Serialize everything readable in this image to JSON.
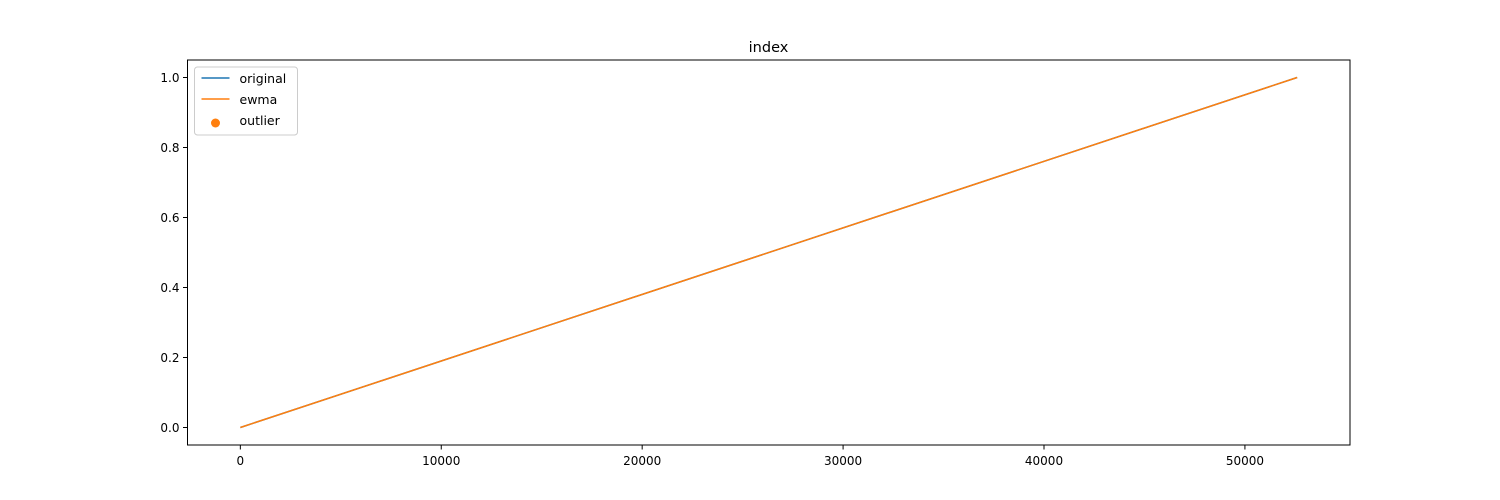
{
  "chart_data": {
    "type": "line",
    "title": "index",
    "xlabel": "",
    "ylabel": "",
    "xlim": [
      -2630,
      55230
    ],
    "ylim": [
      -0.05,
      1.05
    ],
    "x_ticks": [
      0,
      10000,
      20000,
      30000,
      40000,
      50000
    ],
    "x_tick_labels": [
      "0",
      "10000",
      "20000",
      "30000",
      "40000",
      "50000"
    ],
    "y_ticks": [
      0.0,
      0.2,
      0.4,
      0.6,
      0.8,
      1.0
    ],
    "y_tick_labels": [
      "0.0",
      "0.2",
      "0.4",
      "0.6",
      "0.8",
      "1.0"
    ],
    "grid": false,
    "legend_position": "top-left",
    "series": [
      {
        "name": "original",
        "kind": "line",
        "color": "#1f77b4",
        "x": [
          0,
          52600
        ],
        "y": [
          0.0,
          1.0
        ]
      },
      {
        "name": "ewma",
        "kind": "line",
        "color": "#ff7f0e",
        "x": [
          0,
          52600
        ],
        "y": [
          0.0,
          1.0
        ]
      },
      {
        "name": "outlier",
        "kind": "scatter",
        "color": "#ff7f0e",
        "x": [],
        "y": []
      }
    ]
  }
}
